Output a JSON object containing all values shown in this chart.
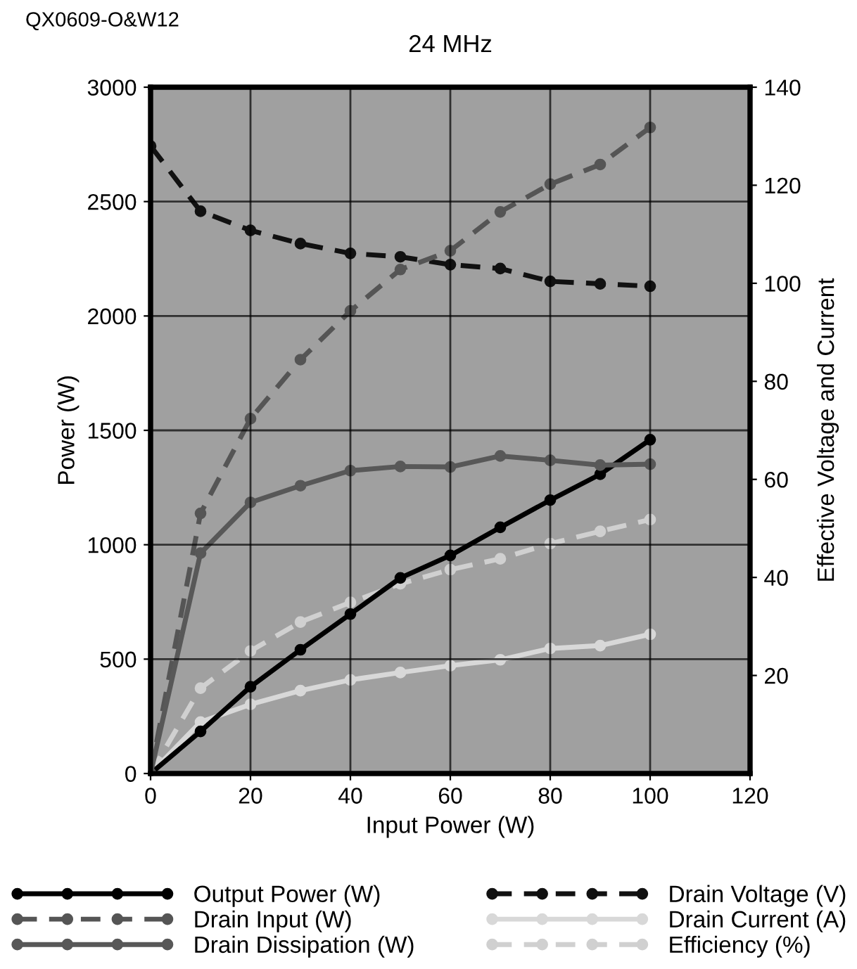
{
  "chart_data": {
    "type": "line",
    "title": "24 MHz",
    "xlabel": "Input Power (W)",
    "ylabel": "Power (W)",
    "y2label": "Effective Voltage and Current",
    "annotations": [
      "QX0609-O&W12"
    ],
    "x": [
      0,
      10,
      20,
      30,
      40,
      50,
      60,
      70,
      80,
      90,
      100
    ],
    "xlim": [
      0,
      120
    ],
    "xticks": [
      0,
      20,
      40,
      60,
      80,
      100,
      120
    ],
    "ylim": [
      0,
      3000
    ],
    "yticks": [
      0,
      500,
      1000,
      1500,
      2000,
      2500,
      3000
    ],
    "y2lim": [
      0,
      140
    ],
    "y2ticks": [
      20,
      40,
      60,
      80,
      100,
      120,
      140
    ],
    "grid": true,
    "legend": "bottom",
    "marker": "circle",
    "series": [
      {
        "name": "Output Power (W)",
        "color": "#000000",
        "line_style": "solid",
        "values": [
          0,
          184,
          379,
          541,
          697,
          855,
          953,
          1076,
          1195,
          1308,
          1459
        ]
      },
      {
        "name": "Drain Input (W)",
        "color": "#555555",
        "line_style": "dashed",
        "values": [
          0,
          1137,
          1551,
          1809,
          2022,
          2203,
          2285,
          2455,
          2576,
          2662,
          2824
        ]
      },
      {
        "name": "Drain Dissipation (W)",
        "color": "#585858",
        "line_style": "solid",
        "values": [
          0,
          963,
          1185,
          1258,
          1324,
          1342,
          1340,
          1388,
          1369,
          1348,
          1352
        ]
      },
      {
        "name": "Drain Voltage (V)",
        "color": "#111111",
        "line_style": "dashed",
        "axis": "y2",
        "values": [
          128,
          114.7,
          110.8,
          108.1,
          106.1,
          105.4,
          103.8,
          103,
          100.4,
          99.9,
          99.4
        ]
      },
      {
        "name": "Drain Current (A)",
        "color": "#d8d8d8",
        "line_style": "solid",
        "axis": "y2",
        "values": [
          0,
          10.5,
          14.1,
          16.9,
          19.1,
          20.6,
          22,
          23.2,
          25.5,
          26.1,
          28.4
        ]
      },
      {
        "name": "Efficiency (%)",
        "color": "#d0d0d0",
        "line_style": "dashed",
        "axis": "y2",
        "values": [
          0,
          17.4,
          25,
          30.9,
          34.9,
          38.7,
          41.6,
          43.8,
          46.9,
          49.4,
          51.8
        ]
      }
    ]
  }
}
